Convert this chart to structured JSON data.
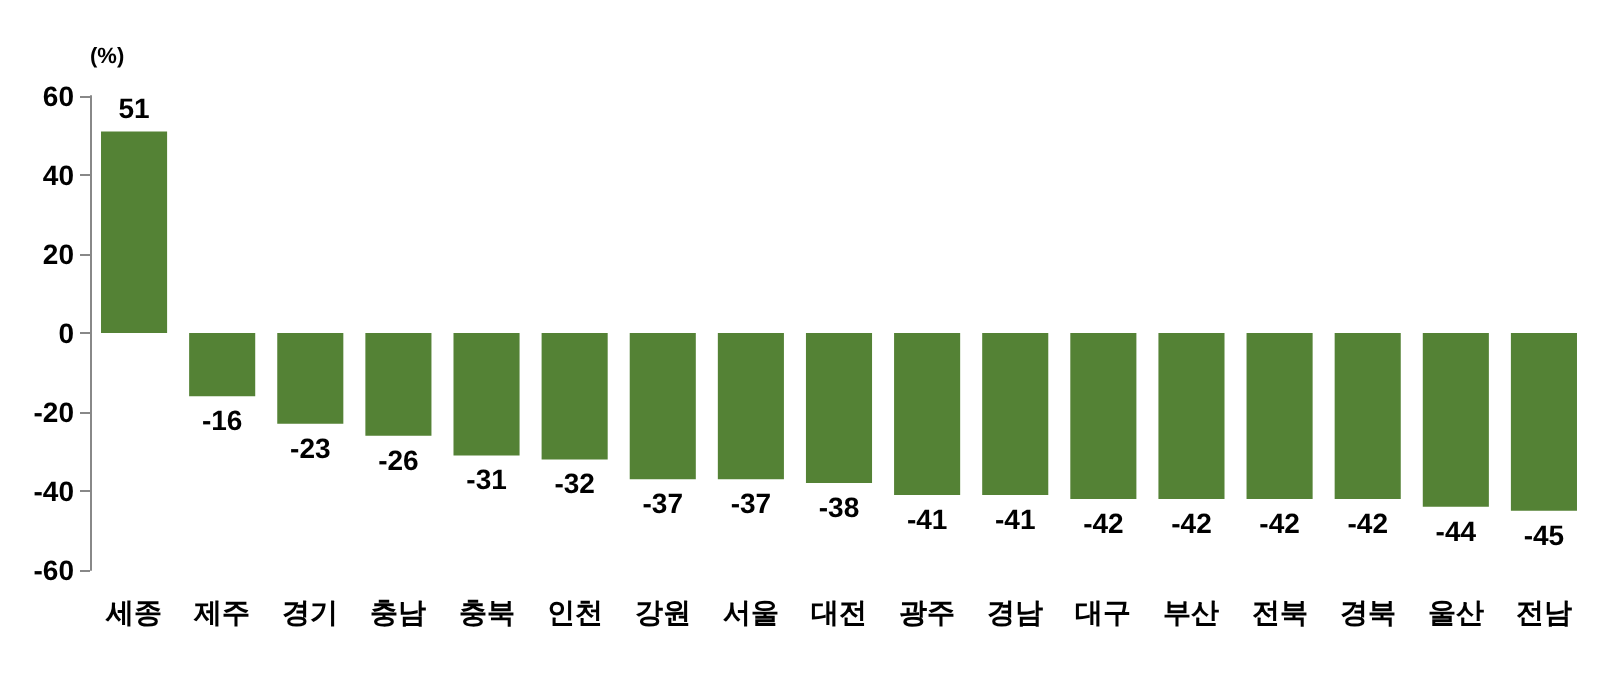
{
  "chart_data": {
    "type": "bar",
    "ylabel": "(%)",
    "categories": [
      "세종",
      "제주",
      "경기",
      "충남",
      "충북",
      "인천",
      "강원",
      "서울",
      "대전",
      "광주",
      "경남",
      "대구",
      "부산",
      "전북",
      "경북",
      "울산",
      "전남"
    ],
    "values": [
      51,
      -16,
      -23,
      -26,
      -31,
      -32,
      -37,
      -37,
      -38,
      -41,
      -41,
      -42,
      -42,
      -42,
      -42,
      -44,
      -45
    ],
    "color": "#548235",
    "ylim": [
      -60,
      60
    ],
    "yticks": [
      -60,
      -40,
      -20,
      0,
      20,
      40,
      60
    ],
    "grid": false,
    "data_labels": true
  }
}
